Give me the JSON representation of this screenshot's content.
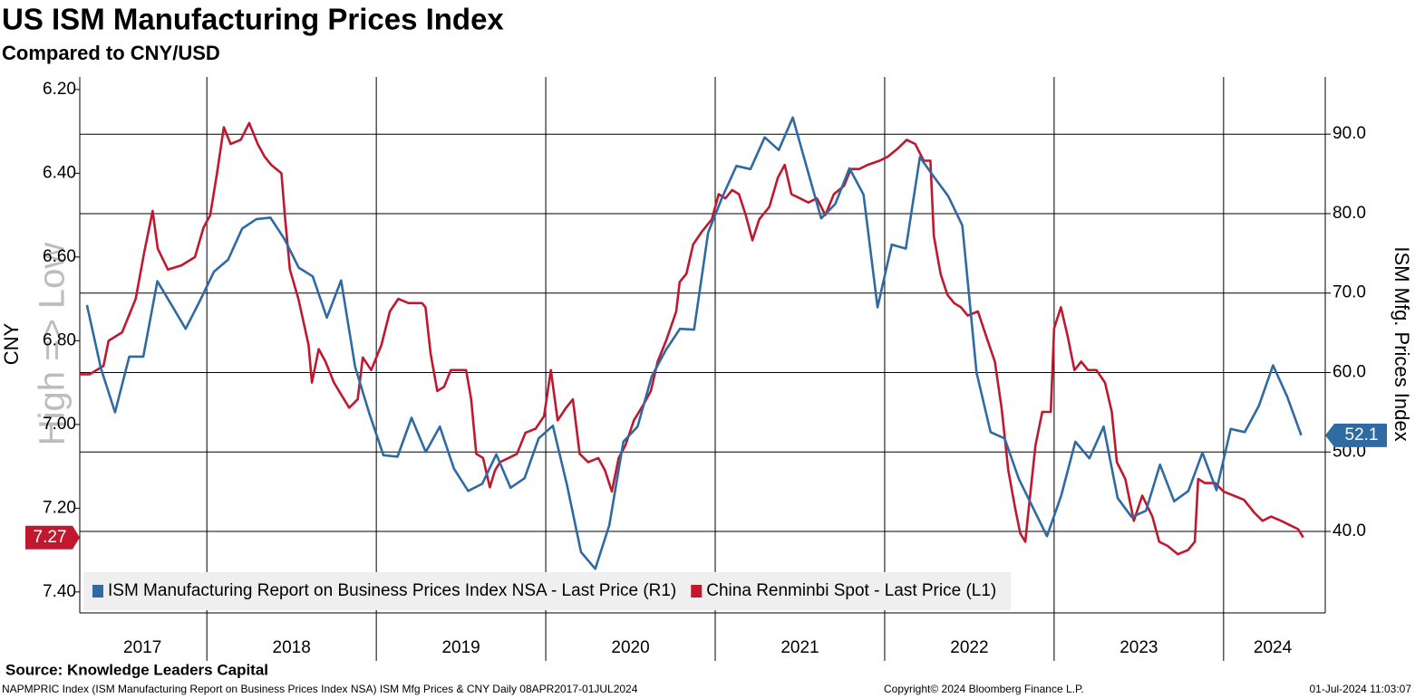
{
  "chart_data": {
    "type": "line",
    "title": "US ISM Manufacturing Prices Index",
    "subtitle": "Compared to CNY/USD",
    "ylabel": "CNY",
    "y2label": "ISM Mfg. Prices Index",
    "annotation": "High => Low",
    "source": "Source: Knowledge Leaders Capital",
    "footnote": "NAPMPRIC Index (ISM Manufacturing Report on Business Prices Index NSA) ISM Mfg Prices & CNY  Daily 08APR2017-01JUL2024",
    "copyright": "Copyright© 2024 Bloomberg Finance L.P.",
    "timestamp": "01-Jul-2024 11:03:07",
    "legend": "lower left",
    "grid": true,
    "xlim": [
      2017.25,
      2024.6
    ],
    "xticks": [
      {
        "value": 2017.62,
        "label": "2017"
      },
      {
        "value": 2018.5,
        "label": "2018"
      },
      {
        "value": 2019.5,
        "label": "2019"
      },
      {
        "value": 2020.5,
        "label": "2020"
      },
      {
        "value": 2021.5,
        "label": "2021"
      },
      {
        "value": 2022.5,
        "label": "2022"
      },
      {
        "value": 2023.5,
        "label": "2023"
      },
      {
        "value": 2024.29,
        "label": "2024"
      }
    ],
    "xgrid": [
      2018,
      2019,
      2020,
      2021,
      2022,
      2023,
      2024
    ],
    "ylim": [
      7.45,
      6.17
    ],
    "yticks": [
      {
        "value": 6.2,
        "label": "6.20"
      },
      {
        "value": 6.4,
        "label": "6.40"
      },
      {
        "value": 6.6,
        "label": "6.60"
      },
      {
        "value": 6.8,
        "label": "6.80"
      },
      {
        "value": 7.0,
        "label": "7.00"
      },
      {
        "value": 7.2,
        "label": "7.20"
      },
      {
        "value": 7.4,
        "label": "7.40"
      }
    ],
    "y2lim": [
      29.75,
      97.2
    ],
    "y2ticks": [
      {
        "value": 40,
        "label": "40.0"
      },
      {
        "value": 50,
        "label": "50.0"
      },
      {
        "value": 60,
        "label": "60.0"
      },
      {
        "value": 70,
        "label": "70.0"
      },
      {
        "value": 80,
        "label": "80.0"
      },
      {
        "value": 90,
        "label": "90.0"
      }
    ],
    "series": [
      {
        "name": "ISM Manufacturing Report on Business Prices Index NSA - Last Price (R1)",
        "color": "#2f6aa3",
        "axis": "y2",
        "x": [
          2017.292,
          2017.375,
          2017.458,
          2017.542,
          2017.625,
          2017.708,
          2017.792,
          2017.875,
          2017.958,
          2018.042,
          2018.125,
          2018.208,
          2018.292,
          2018.375,
          2018.458,
          2018.542,
          2018.625,
          2018.708,
          2018.792,
          2018.875,
          2018.958,
          2019.042,
          2019.125,
          2019.208,
          2019.292,
          2019.375,
          2019.458,
          2019.542,
          2019.625,
          2019.708,
          2019.792,
          2019.875,
          2019.958,
          2020.042,
          2020.125,
          2020.208,
          2020.292,
          2020.375,
          2020.458,
          2020.542,
          2020.625,
          2020.708,
          2020.792,
          2020.875,
          2020.958,
          2021.042,
          2021.125,
          2021.208,
          2021.292,
          2021.375,
          2021.458,
          2021.542,
          2021.625,
          2021.708,
          2021.792,
          2021.875,
          2021.958,
          2022.042,
          2022.125,
          2022.208,
          2022.292,
          2022.375,
          2022.458,
          2022.542,
          2022.625,
          2022.708,
          2022.792,
          2022.875,
          2022.958,
          2023.042,
          2023.125,
          2023.208,
          2023.292,
          2023.375,
          2023.458,
          2023.542,
          2023.625,
          2023.708,
          2023.792,
          2023.875,
          2023.958,
          2024.042,
          2024.125,
          2024.208,
          2024.292,
          2024.375,
          2024.458
        ],
        "values": [
          68.5,
          60.5,
          55.0,
          62.0,
          62.0,
          71.5,
          68.5,
          65.5,
          69.0,
          72.7,
          74.2,
          78.1,
          79.3,
          79.5,
          76.8,
          73.2,
          72.1,
          66.9,
          71.6,
          60.7,
          54.9,
          49.6,
          49.4,
          54.3,
          50.0,
          53.2,
          47.9,
          45.1,
          46.0,
          49.7,
          45.5,
          46.7,
          51.7,
          53.3,
          45.9,
          37.4,
          35.3,
          40.8,
          51.3,
          53.2,
          59.5,
          62.8,
          65.5,
          65.4,
          77.6,
          82.1,
          86.0,
          85.6,
          89.6,
          88.0,
          92.1,
          85.7,
          79.4,
          81.2,
          85.7,
          82.4,
          68.2,
          76.1,
          75.6,
          87.1,
          84.6,
          82.2,
          78.5,
          60.0,
          52.5,
          51.7,
          46.6,
          43.0,
          39.4,
          44.5,
          51.3,
          49.2,
          53.2,
          44.2,
          41.8,
          42.6,
          48.4,
          43.8,
          45.1,
          49.9,
          45.2,
          52.9,
          52.5,
          55.8,
          60.9,
          57.0,
          52.1
        ]
      },
      {
        "name": "China Renminbi Spot - Last Price (L1)",
        "color": "#c0182e",
        "axis": "y",
        "x": [
          2017.25,
          2017.31,
          2017.39,
          2017.42,
          2017.5,
          2017.58,
          2017.63,
          2017.68,
          2017.71,
          2017.77,
          2017.85,
          2017.93,
          2017.98,
          2018.02,
          2018.06,
          2018.1,
          2018.14,
          2018.2,
          2018.25,
          2018.3,
          2018.34,
          2018.38,
          2018.44,
          2018.46,
          2018.49,
          2018.54,
          2018.6,
          2018.62,
          2018.66,
          2018.7,
          2018.75,
          2018.78,
          2018.84,
          2018.89,
          2018.92,
          2018.97,
          2019.03,
          2019.08,
          2019.13,
          2019.19,
          2019.27,
          2019.29,
          2019.32,
          2019.36,
          2019.4,
          2019.44,
          2019.48,
          2019.53,
          2019.56,
          2019.59,
          2019.63,
          2019.67,
          2019.7,
          2019.73,
          2019.78,
          2019.83,
          2019.88,
          2019.94,
          2019.99,
          2020.03,
          2020.07,
          2020.12,
          2020.16,
          2020.2,
          2020.25,
          2020.31,
          2020.35,
          2020.39,
          2020.43,
          2020.47,
          2020.52,
          2020.58,
          2020.62,
          2020.66,
          2020.71,
          2020.77,
          2020.79,
          2020.83,
          2020.87,
          2020.92,
          2020.98,
          2021.02,
          2021.06,
          2021.1,
          2021.14,
          2021.18,
          2021.22,
          2021.26,
          2021.32,
          2021.37,
          2021.41,
          2021.45,
          2021.5,
          2021.55,
          2021.6,
          2021.65,
          2021.7,
          2021.76,
          2021.8,
          2021.85,
          2021.9,
          2021.97,
          2022.02,
          2022.08,
          2022.13,
          2022.18,
          2022.23,
          2022.27,
          2022.29,
          2022.33,
          2022.37,
          2022.41,
          2022.45,
          2022.49,
          2022.55,
          2022.6,
          2022.65,
          2022.69,
          2022.73,
          2022.77,
          2022.8,
          2022.83,
          2022.85,
          2022.89,
          2022.93,
          2022.98,
          2023.0,
          2023.04,
          2023.08,
          2023.12,
          2023.16,
          2023.2,
          2023.25,
          2023.3,
          2023.34,
          2023.37,
          2023.42,
          2023.47,
          2023.52,
          2023.58,
          2023.62,
          2023.67,
          2023.73,
          2023.79,
          2023.83,
          2023.85,
          2023.89,
          2023.95,
          2024.0,
          2024.06,
          2024.12,
          2024.18,
          2024.23,
          2024.28,
          2024.34,
          2024.39,
          2024.44,
          2024.47
        ],
        "values": [
          6.88,
          6.88,
          6.86,
          6.8,
          6.78,
          6.7,
          6.59,
          6.49,
          6.58,
          6.63,
          6.62,
          6.6,
          6.53,
          6.5,
          6.4,
          6.29,
          6.33,
          6.32,
          6.28,
          6.33,
          6.36,
          6.38,
          6.4,
          6.5,
          6.63,
          6.7,
          6.81,
          6.9,
          6.82,
          6.85,
          6.9,
          6.92,
          6.96,
          6.94,
          6.84,
          6.87,
          6.81,
          6.73,
          6.7,
          6.71,
          6.71,
          6.72,
          6.83,
          6.92,
          6.91,
          6.87,
          6.87,
          6.87,
          6.94,
          7.07,
          7.08,
          7.15,
          7.11,
          7.09,
          7.08,
          7.07,
          7.02,
          7.01,
          6.98,
          6.87,
          6.99,
          6.96,
          6.94,
          7.07,
          7.09,
          7.08,
          7.11,
          7.16,
          7.08,
          7.05,
          6.99,
          6.95,
          6.92,
          6.85,
          6.8,
          6.73,
          6.66,
          6.64,
          6.57,
          6.54,
          6.51,
          6.45,
          6.46,
          6.44,
          6.45,
          6.5,
          6.56,
          6.51,
          6.48,
          6.41,
          6.38,
          6.45,
          6.46,
          6.47,
          6.46,
          6.5,
          6.45,
          6.43,
          6.39,
          6.39,
          6.38,
          6.37,
          6.36,
          6.34,
          6.32,
          6.33,
          6.37,
          6.37,
          6.55,
          6.64,
          6.69,
          6.71,
          6.72,
          6.74,
          6.73,
          6.79,
          6.85,
          6.96,
          7.11,
          7.2,
          7.26,
          7.28,
          7.2,
          7.05,
          6.97,
          6.97,
          6.77,
          6.72,
          6.79,
          6.87,
          6.85,
          6.87,
          6.87,
          6.9,
          6.97,
          7.09,
          7.13,
          7.23,
          7.17,
          7.22,
          7.28,
          7.29,
          7.31,
          7.3,
          7.28,
          7.13,
          7.14,
          7.14,
          7.16,
          7.17,
          7.18,
          7.21,
          7.23,
          7.22,
          7.23,
          7.24,
          7.25,
          7.27
        ]
      }
    ]
  }
}
